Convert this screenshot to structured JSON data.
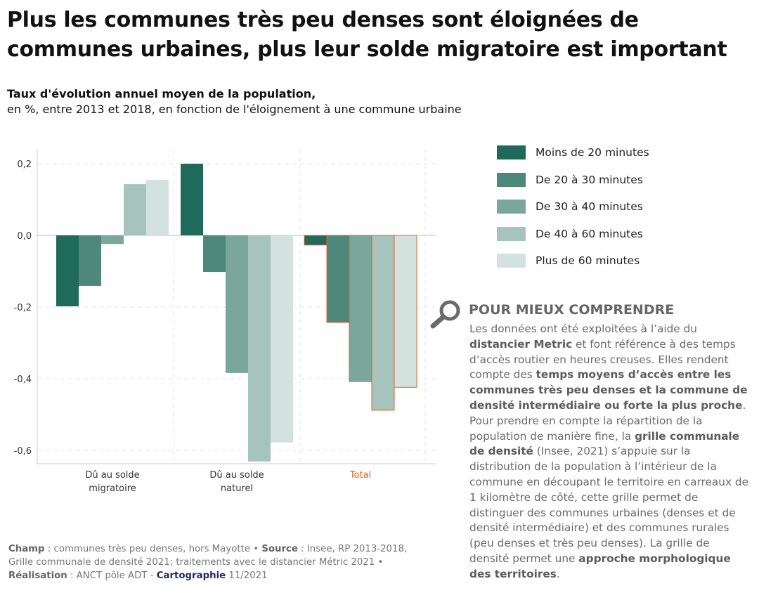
{
  "title": "Plus les communes très peu denses sont éloignées de communes urbaines, plus leur solde migratoire est important",
  "subtitle_bold": "Taux d'évolution annuel moyen de la population,",
  "subtitle": "en %, entre 2013 et 2018, en fonction de l'éloignement à une commune urbaine",
  "chart_data": {
    "type": "bar",
    "categories": [
      "Dû au solde migratoire",
      "Dû au solde naturel",
      "Total"
    ],
    "category_labels": [
      [
        "Dû au solde",
        "migratoire"
      ],
      [
        "Dû au solde",
        "naturel"
      ],
      [
        "Total"
      ]
    ],
    "series": [
      {
        "name": "Moins de 20 minutes",
        "color": "#1f6a5a",
        "values": [
          -0.198,
          0.2,
          -0.027
        ]
      },
      {
        "name": "De 20 à 30 minutes",
        "color": "#4d887a",
        "values": [
          -0.141,
          -0.102,
          -0.243
        ]
      },
      {
        "name": "De 30 à 40 minutes",
        "color": "#7ba69b",
        "values": [
          -0.024,
          -0.384,
          -0.408
        ]
      },
      {
        "name": "De 40 à 60 minutes",
        "color": "#a7c4bc",
        "values": [
          0.143,
          -0.631,
          -0.488
        ]
      },
      {
        "name": "Plus de 60 minutes",
        "color": "#d3e2de",
        "values": [
          0.155,
          -0.578,
          -0.424
        ]
      }
    ],
    "yticks": [
      "0,2",
      "0,0",
      "-0,2",
      "-0,4",
      "-0,6"
    ],
    "ytick_values": [
      0.2,
      0,
      -0.2,
      -0.4,
      -0.6
    ],
    "ylim": [
      -0.65,
      0.24
    ],
    "grid": true,
    "legend": "right",
    "highlight_color": "#e2622f"
  },
  "box": {
    "title": "POUR MIEUX COMPRENDRE",
    "icon": "magnifier-icon",
    "segments": [
      {
        "t": "Les données ont été exploitées à l’aide du ",
        "b": false
      },
      {
        "t": "distancier Metric",
        "b": true
      },
      {
        "t": " et font référence à des temps d’accès routier en heures creuses. Elles rendent compte des ",
        "b": false
      },
      {
        "t": "temps moyens d’accès entre les communes très peu denses et la commune de densité intermédiaire ou forte la plus proche",
        "b": true
      },
      {
        "t": ". Pour prendre en compte la répartition de la population de manière fine, la ",
        "b": false
      },
      {
        "t": "grille communale de densité",
        "b": true
      },
      {
        "t": " (Insee, 2021) s’appuie sur la distribution de la population à l’intérieur de la commune en découpant le territoire en carreaux de 1 kilomètre de côté, cette grille permet de distinguer des communes urbaines (denses et de densité intermédiaire) et des communes rurales (peu denses et très peu denses). La grille de densité permet une ",
        "b": false
      },
      {
        "t": "approche morphologique des territoires",
        "b": true
      },
      {
        "t": ".",
        "b": false
      }
    ]
  },
  "footer": {
    "champ_label": "Champ",
    "champ": " : communes très peu denses, hors Mayotte • ",
    "source_label": "Source",
    "source": " : Insee, RP 2013-2018, Grille communale de densité 2021; traitements avec le distancier Métric 2021  • ",
    "real_label": "Réalisation",
    "real": " : ANCT pôle ADT -  ",
    "carto_label": "Cartographie",
    "carto": " 11/2021"
  }
}
